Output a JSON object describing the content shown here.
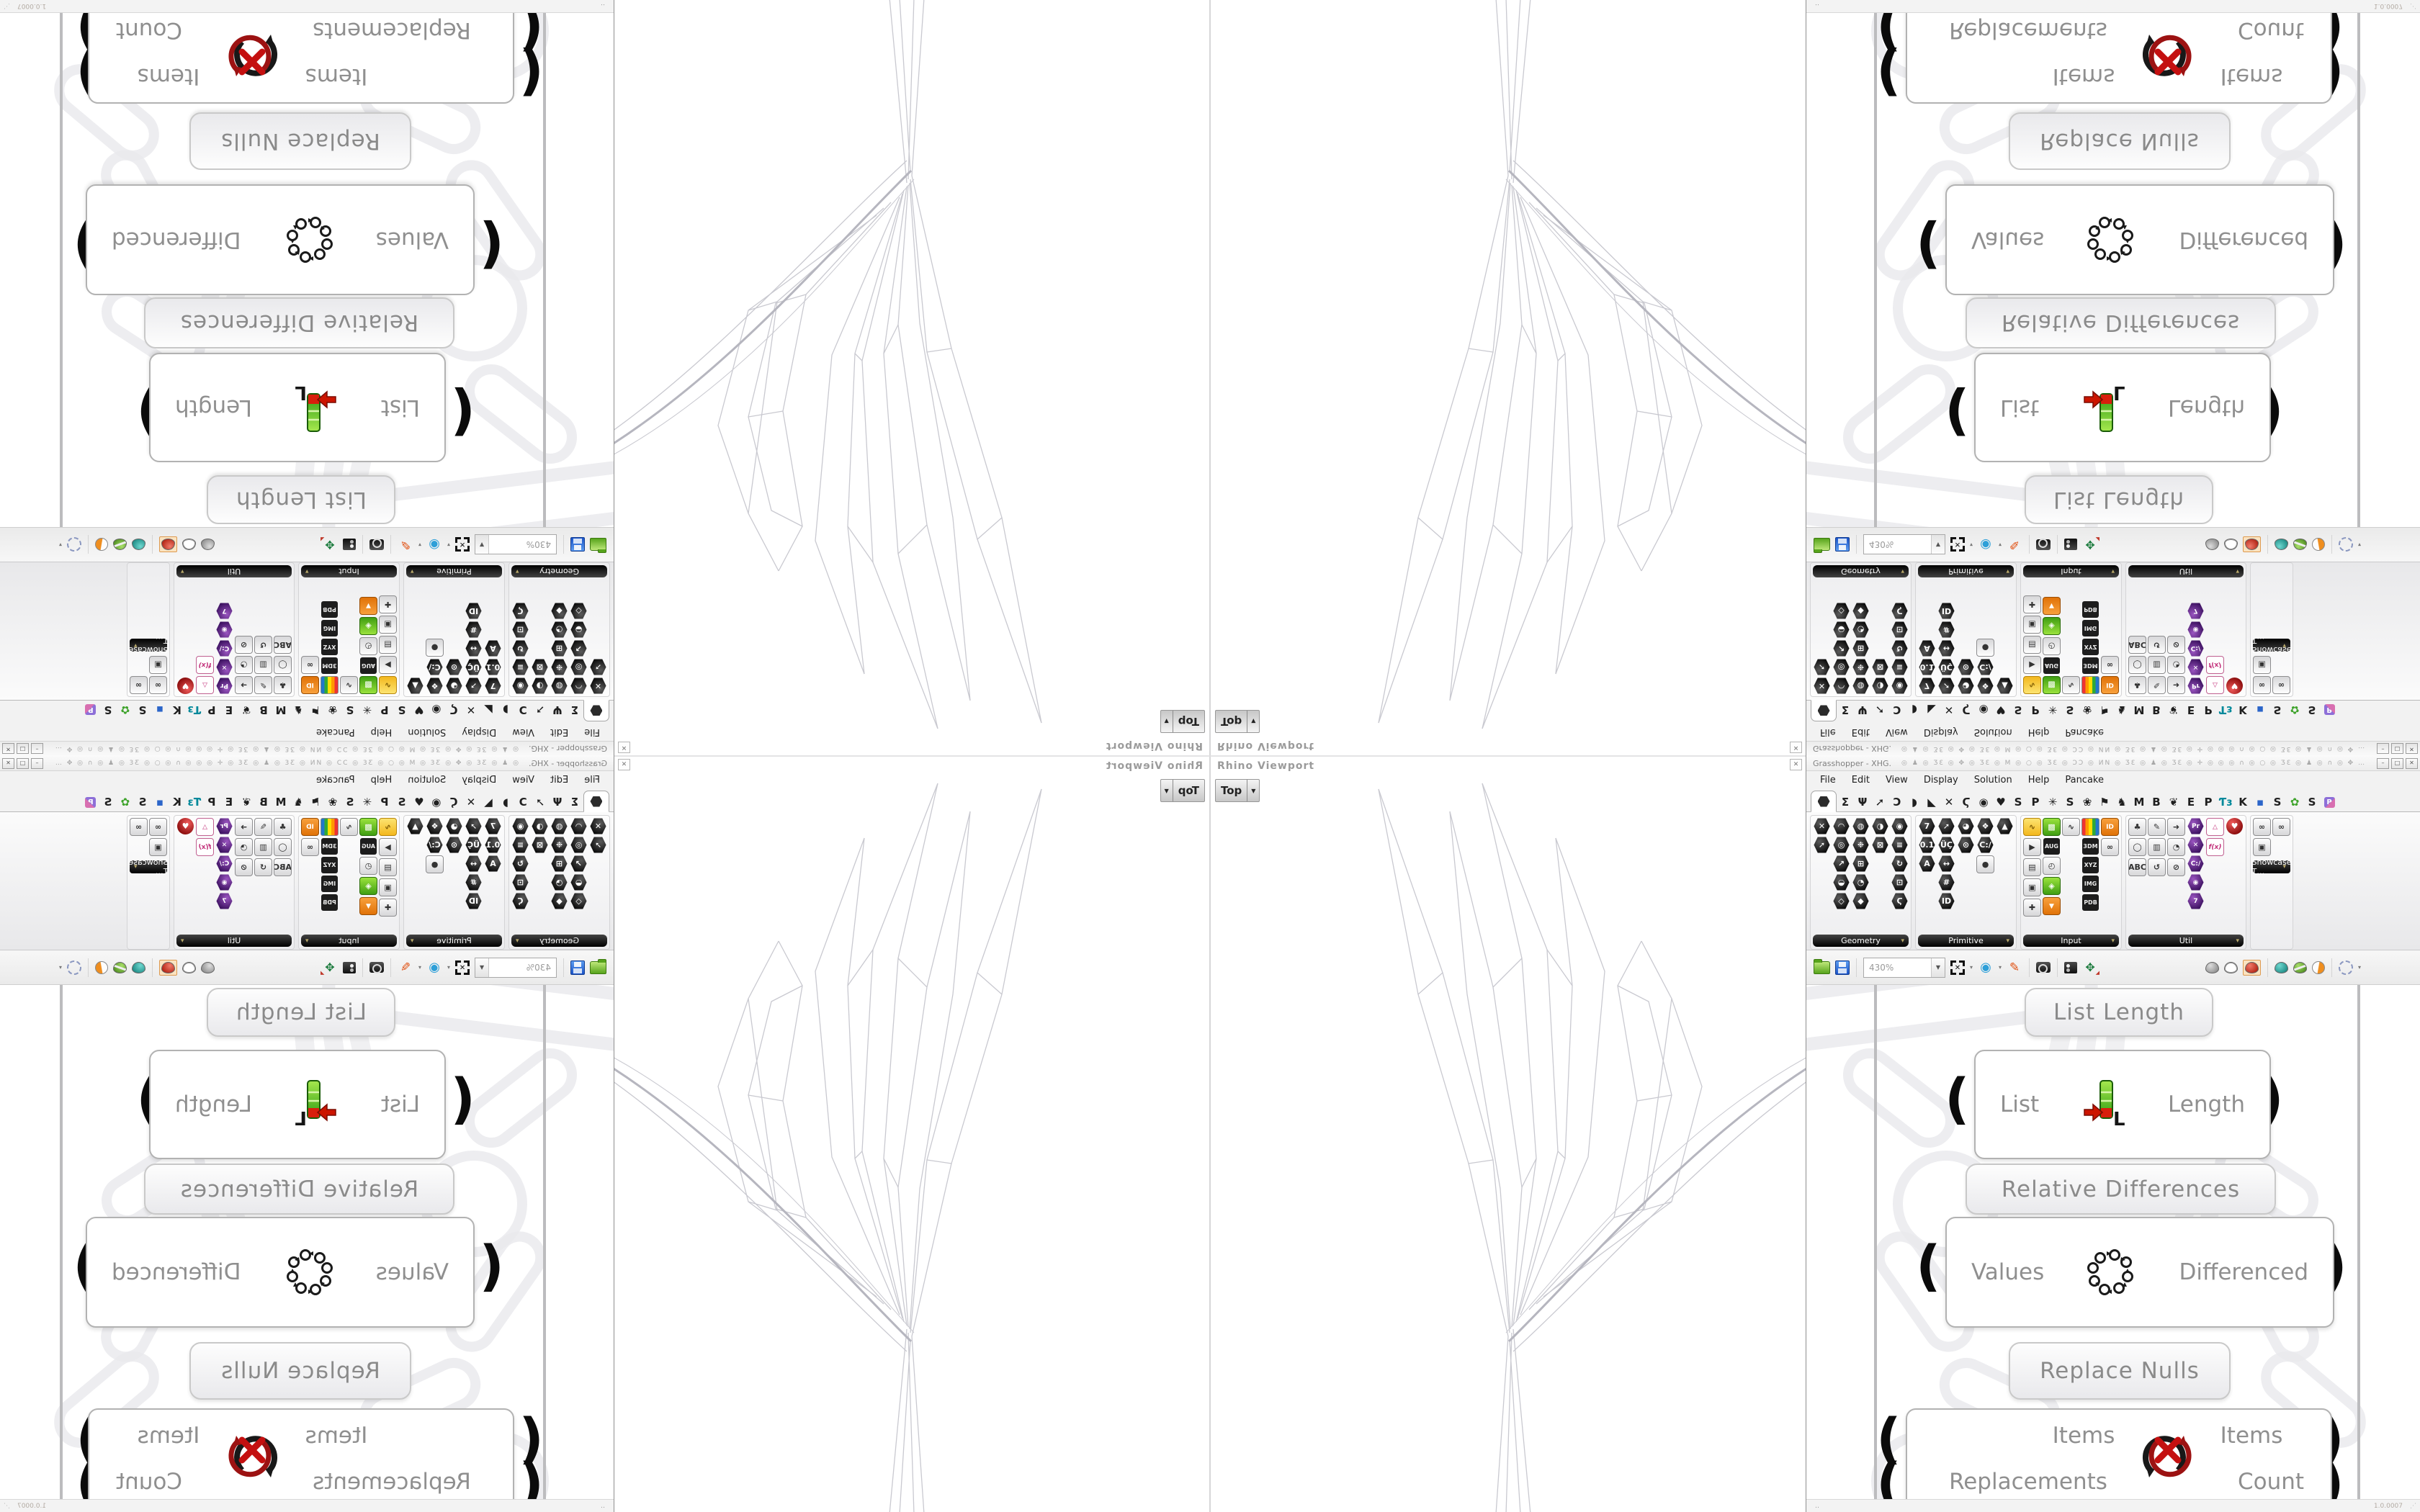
{
  "viewport": {
    "title": "Rhino Viewport",
    "camera": "Top",
    "close_glyph": "✕"
  },
  "gh_window": {
    "title": "Grasshopper - XHG.",
    "title_decoration": "◎ ♟ ◎ ƷƐ ◎ ✥ ◎ ƷƐ ◎ M ◎ ○ ◎ ƷƐ ◎ ƆƆ ◎ ИN ◎ ƷƐ ◎ ♟ ◎ ƷƐ ◎ ✛ ◎ ◎ ◎ ∩ ◎ ○ ◎ ƷƐ ◎ ♟ ◎ ∩ ◎ ✥ …",
    "window_buttons": [
      "–",
      "□",
      "✕"
    ],
    "menu": [
      "File",
      "Edit",
      "View",
      "Display",
      "Solution",
      "Help",
      "Pancake"
    ],
    "status_left": "‥",
    "version": "1.0.0007"
  },
  "tabs": [
    {
      "g": "hex",
      "sel": true
    },
    {
      "g": "Σ"
    },
    {
      "g": "Ψ"
    },
    {
      "g": "➚"
    },
    {
      "g": "Ↄ"
    },
    {
      "g": "◗"
    },
    {
      "g": "◣"
    },
    {
      "g": "✕"
    },
    {
      "g": "Ϛ"
    },
    {
      "g": "◉"
    },
    {
      "g": "♥"
    },
    {
      "g": "S"
    },
    {
      "g": "P"
    },
    {
      "g": "✳"
    },
    {
      "g": "S"
    },
    {
      "g": "❀"
    },
    {
      "g": "⚑"
    },
    {
      "g": "♞"
    },
    {
      "g": "M"
    },
    {
      "g": "B"
    },
    {
      "g": "❦"
    },
    {
      "g": "E"
    },
    {
      "g": "P"
    },
    {
      "g": "Ƭɜ",
      "c": "#00889a"
    },
    {
      "g": "K"
    },
    {
      "g": "▪",
      "c": "#2b65c9"
    },
    {
      "g": "S"
    },
    {
      "g": "✿",
      "c": "#3fa32c"
    },
    {
      "g": "S"
    },
    {
      "g": "P",
      "tile": true
    }
  ],
  "palette": {
    "groups": [
      {
        "name": "Geometry",
        "cols": [
          [
            "✕|0",
            "➚|0"
          ],
          [
            "◠|0",
            "◎|0",
            "↗|0",
            "◒|0",
            "◇|0"
          ],
          [
            "◍|0",
            "❉|0",
            "⊞|0",
            "◔|0",
            "◆|0"
          ],
          [
            "◑|0",
            "⊠|0"
          ],
          [
            "◉|0",
            "≡|0",
            "↻|0",
            "⊡|0",
            "Ϛ|0"
          ]
        ]
      },
      {
        "name": "Primitive",
        "cols": [
          [
            "7|0",
            "0.1|0",
            "A|0"
          ],
          [
            "➚|0",
            "ÜÇ|0",
            "↔|0",
            "#|0",
            "ID|0"
          ],
          [
            "◕|0",
            "⊙|0"
          ],
          [
            "❖|0",
            "C:/|0",
            "●|2"
          ],
          [
            "▲|0"
          ]
        ]
      },
      {
        "name": "Input",
        "cols": [
          [
            "∿|3",
            "▶|2",
            "▤|2",
            "▣|2",
            "✚|2"
          ],
          [
            "▩|4",
            "AUG|11",
            "◴|2",
            "◈|4",
            "▼|6"
          ],
          [
            "∿|2"
          ],
          [
            "▦|5",
            "3DM|11",
            "XYZ|11",
            "IMG|11",
            "PDB|11"
          ],
          [
            "ID|6",
            "∞|2"
          ]
        ]
      },
      {
        "name": "Util",
        "cols": [
          [
            "♣|2",
            "◯|2",
            "ABC|2"
          ],
          [
            "✎|2",
            "▥|2",
            "↺|2"
          ],
          [
            "➜|2",
            "◔|2",
            "⊘|2"
          ],
          [
            "Pr|7",
            "✕|7",
            "C:/|7",
            "◉|7",
            "7|7"
          ],
          [
            "△|9",
            "f(x)|9"
          ],
          [
            "♥|8"
          ]
        ]
      },
      {
        "name": "Showcase T…",
        "inline_label": true,
        "cols": [
          [
            "∞|2",
            "▣|2"
          ],
          [
            "∞|2"
          ]
        ]
      }
    ]
  },
  "toolbar": {
    "zoom_level": "430%"
  },
  "canvas": {
    "group_labels": [
      {
        "label": "List Length"
      },
      {
        "label": "Relative Differences"
      },
      {
        "label": "Replace Nulls"
      }
    ],
    "components": [
      {
        "name": "List Length",
        "inputs": [
          "List"
        ],
        "outputs": [
          "Length"
        ]
      },
      {
        "name": "Relative Differences",
        "inputs": [
          "Values"
        ],
        "outputs": [
          "Differenced"
        ]
      },
      {
        "name": "Replace Nulls",
        "inputs": [
          "Items",
          "Replacements"
        ],
        "outputs": [
          "Items",
          "Count"
        ]
      }
    ]
  }
}
